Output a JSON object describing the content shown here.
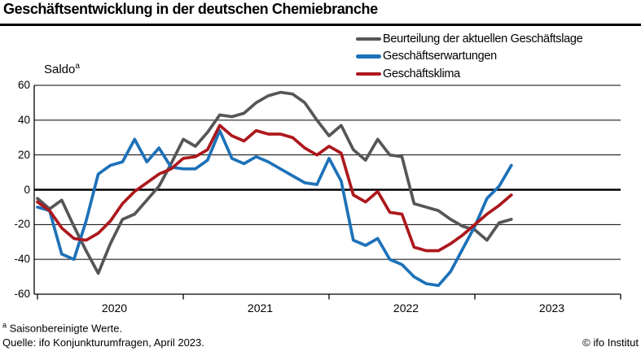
{
  "header": {
    "title": "Geschäftsentwicklung in der deutschen Chemiebranche"
  },
  "y_axis": {
    "title": "Saldo",
    "title_sup": "a"
  },
  "footer": {
    "note_sup": "a",
    "note": " Saisonbereinigte Werte.",
    "source": "Quelle: ifo Konjunkturumfragen, April 2023.",
    "copyright": "© ifo Institut"
  },
  "chart_data": {
    "type": "line",
    "title": "Geschäftsentwicklung in der deutschen Chemiebranche",
    "ylabel": "Saldo (saisonbereinigt)",
    "ylim": [
      -60,
      60
    ],
    "grid": true,
    "legend_position": "top-right",
    "ytick_labels": [
      "60",
      "40",
      "20",
      "0",
      "-20",
      "-40",
      "-60"
    ],
    "ytick_values": [
      60,
      40,
      20,
      0,
      -20,
      -40,
      -60
    ],
    "x_year_labels": [
      "2020",
      "2021",
      "2022",
      "2023"
    ],
    "x_start_month": "2020-01",
    "x_end_month": "2023-04",
    "x_axis_span_months": 48,
    "series": [
      {
        "name": "Beurteilung der aktuellen Geschäftslage",
        "color": "#565659",
        "values": [
          -5,
          -11,
          -6,
          -21,
          -35,
          -48,
          -31,
          -17,
          -14,
          -6,
          2,
          15,
          29,
          25,
          33,
          43,
          42,
          44,
          50,
          54,
          56,
          55,
          50,
          40,
          31,
          37,
          23,
          17,
          29,
          20,
          19,
          -8,
          -10,
          -12,
          -17,
          -21,
          -23,
          -29,
          -19,
          -17
        ]
      },
      {
        "name": "Geschäftserwartungen",
        "color": "#1d71b8",
        "values": [
          -10,
          -12,
          -37,
          -40,
          -18,
          9,
          14,
          16,
          29,
          16,
          24,
          13,
          12,
          12,
          17,
          34,
          18,
          15,
          19,
          16,
          12,
          8,
          4,
          3,
          18,
          5,
          -29,
          -32,
          -28,
          -40,
          -43,
          -50,
          -54,
          -55,
          -47,
          -34,
          -21,
          -5,
          2,
          14
        ]
      },
      {
        "name": "Geschäftsklima",
        "color": "#ac181d",
        "values": [
          -7,
          -12,
          -22,
          -28,
          -29,
          -25,
          -18,
          -8,
          -1,
          4,
          9,
          12,
          18,
          19,
          23,
          37,
          31,
          28,
          34,
          32,
          32,
          30,
          24,
          20,
          25,
          21,
          -3,
          -7,
          -1,
          -13,
          -14,
          -33,
          -35,
          -35,
          -31,
          -26,
          -20,
          -14,
          -9,
          -3
        ]
      }
    ]
  }
}
